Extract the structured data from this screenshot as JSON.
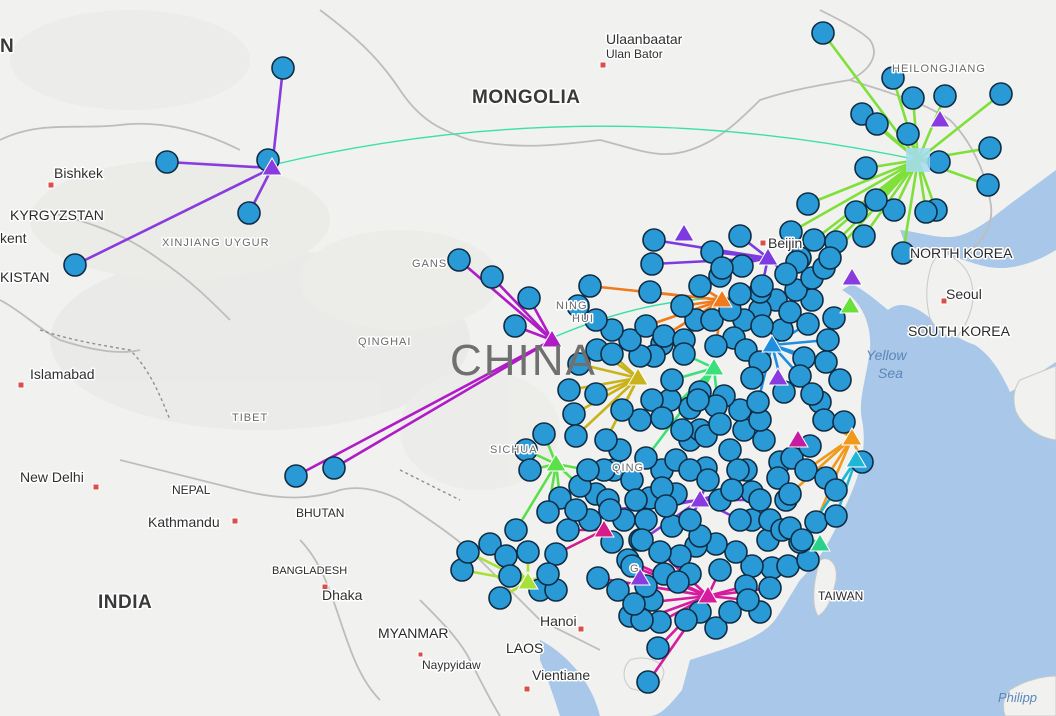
{
  "colors": {
    "land": "#f1f1ef",
    "sea": "#a9c7e8",
    "border": "#c9c9c9",
    "disputed": "#8a8a8a",
    "marker_fill": "#2a9ad6",
    "marker_stroke": "#0e2d44",
    "capital": "#d9504a"
  },
  "labels": {
    "mongolia": "MONGOLIA",
    "china": "CHINA",
    "kyrgyzstan": "KYRGYZSTAN",
    "kistan": "KISTAN",
    "kent": "kent",
    "n_edge": "N",
    "north_korea": "NORTH KOREA",
    "south_korea": "SOUTH KOREA",
    "india": "INDIA",
    "nepal": "NEPAL",
    "bhutan": "BHUTAN",
    "bangladesh": "BANGLADESH",
    "myanmar": "MYANMAR",
    "laos": "LAOS",
    "taiwan": "TAIWAN",
    "xinjiang": "XINJIANG UYGUR",
    "qinghai": "QINGHAI",
    "tibet": "TIBET",
    "gansu": "GANS",
    "ningxia": "NING",
    "hui": "HUI",
    "sichuan": "SICHUA",
    "qing": "QING",
    "heilongjiang": "HEILONGJIANG",
    "guangxi": "G",
    "ulaanbaatar": "Ulaanbaatar",
    "ulan_bator": "Ulan Bator",
    "bishkek": "Bishkek",
    "islamabad": "Islamabad",
    "new_delhi": "New Delhi",
    "kathmandu": "Kathmandu",
    "dhaka": "Dhaka",
    "naypyidaw": "Naypyidaw",
    "hanoi": "Hanoi",
    "vientiane": "Vientiane",
    "beijing": "Beijin",
    "seoul": "Seoul",
    "yellow": "Yellow",
    "sea": "Sea",
    "philippines": "Philipp"
  }
}
